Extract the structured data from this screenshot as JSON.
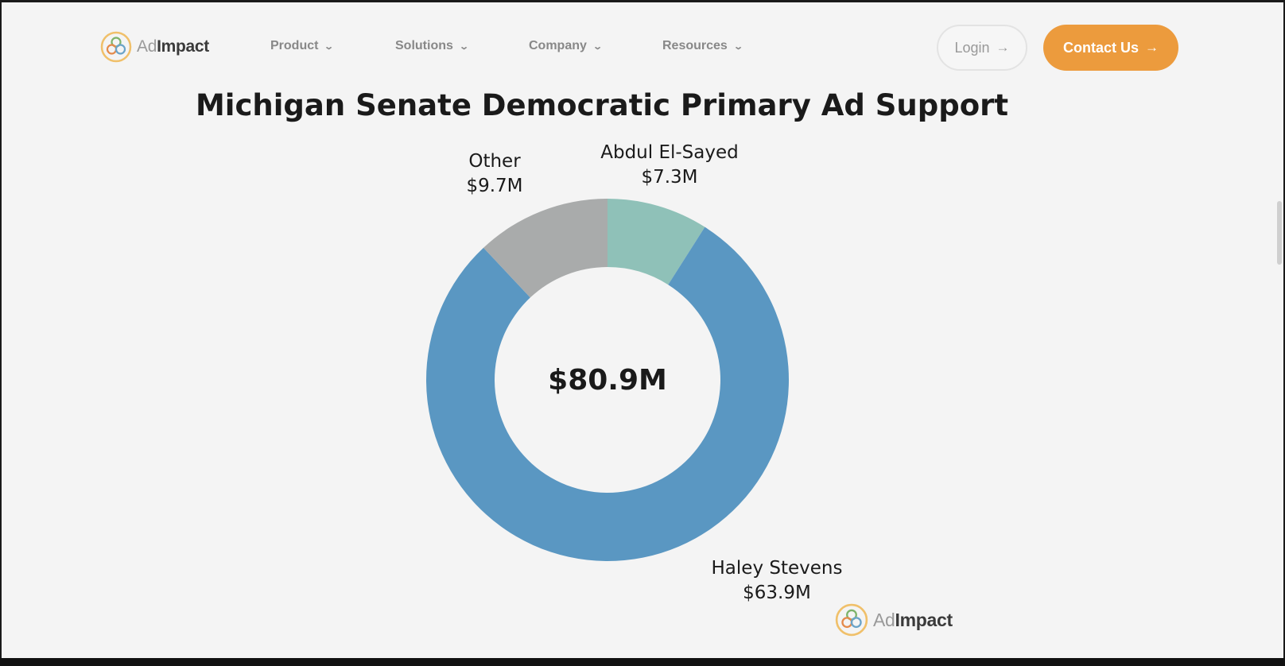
{
  "nav": {
    "logo_text_light": "Ad",
    "logo_text_bold": "Impact",
    "menu": [
      {
        "label": "Product"
      },
      {
        "label": "Solutions"
      },
      {
        "label": "Company"
      },
      {
        "label": "Resources"
      }
    ],
    "login_label": "Login",
    "contact_label": "Contact Us"
  },
  "colors": {
    "accent": "#ec9b3d",
    "haley": "#5a97c2",
    "abdul": "#8fc1b8",
    "other": "#a9abab"
  },
  "chart_data": {
    "type": "pie",
    "title": "Michigan Senate Democratic Primary Ad Support",
    "center_label": "$80.9M",
    "units": "$M",
    "slices": [
      {
        "name": "Abdul El-Sayed",
        "value": 7.3,
        "label": "$7.3M",
        "color": "#8fc1b8"
      },
      {
        "name": "Haley Stevens",
        "value": 63.9,
        "label": "$63.9M",
        "color": "#5a97c2"
      },
      {
        "name": "Other",
        "value": 9.7,
        "label": "$9.7M",
        "color": "#a9abab"
      }
    ]
  },
  "watermark": {
    "text_light": "Ad",
    "text_bold": "Impact"
  }
}
